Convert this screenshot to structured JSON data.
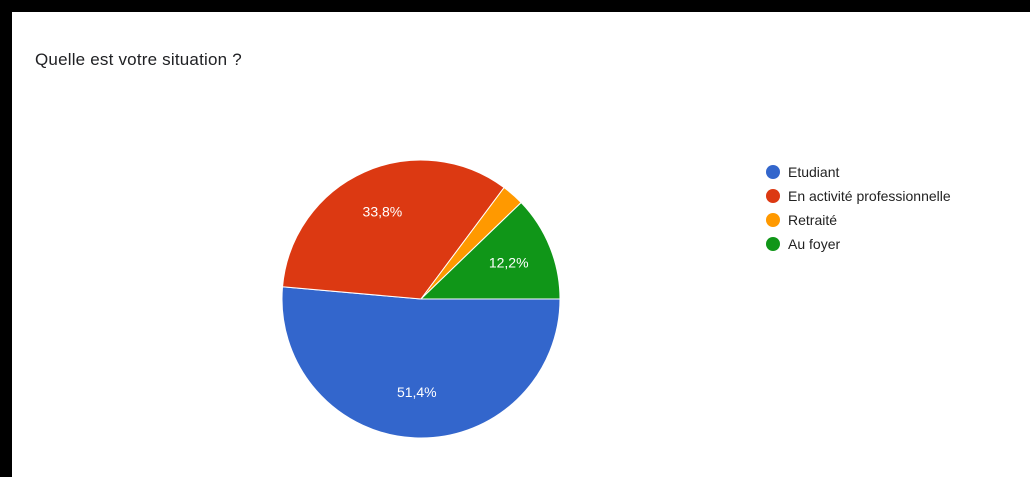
{
  "chart_data": {
    "type": "pie",
    "title": "Quelle est votre situation ?",
    "categories": [
      "Etudiant",
      "En activité professionnelle",
      "Retraité",
      "Au foyer"
    ],
    "values": [
      51.4,
      33.8,
      2.6,
      12.2
    ],
    "value_labels": [
      "51,4%",
      "33,8%",
      "",
      "12,2%"
    ],
    "colors": [
      "#3366cc",
      "#dc3912",
      "#ff9900",
      "#109618"
    ],
    "legend_position": "right"
  }
}
